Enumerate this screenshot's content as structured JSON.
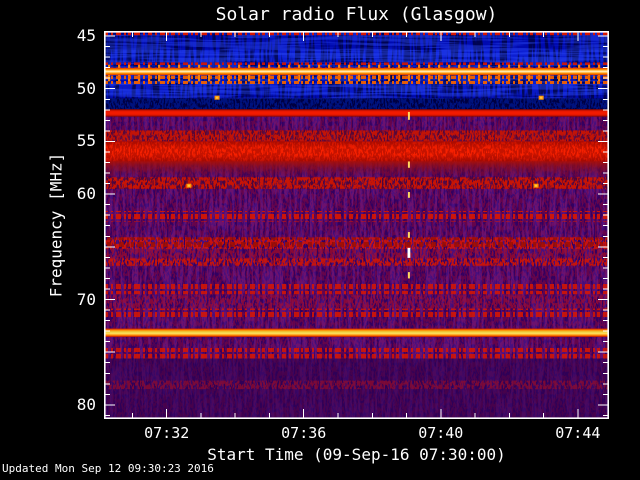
{
  "chart_data": {
    "type": "heatmap",
    "title": "Solar radio Flux (Glasgow)",
    "xlabel": "Start Time (09-Sep-16 07:30:00)",
    "ylabel": "Frequency [MHz]",
    "x_axis": {
      "unit": "minutes after 07:30:00",
      "range_t_min": [
        0.17,
        14.91
      ],
      "major_ticks": [
        {
          "t": 2,
          "label": "07:32"
        },
        {
          "t": 6,
          "label": "07:36"
        },
        {
          "t": 10,
          "label": "07:40"
        },
        {
          "t": 14,
          "label": "07:44"
        }
      ],
      "minor_ticks_t": [
        1,
        2,
        3,
        4,
        5,
        6,
        7,
        8,
        9,
        10,
        11,
        12,
        13,
        14
      ]
    },
    "y_axis": {
      "unit": "MHz",
      "range_mhz": [
        44.52,
        81.34
      ],
      "major_ticks": [
        {
          "f": 45,
          "label": "45"
        },
        {
          "f": 50,
          "label": "50"
        },
        {
          "f": 55,
          "label": "55"
        },
        {
          "f": 60,
          "label": "60"
        },
        {
          "f": 65,
          "label": ""
        },
        {
          "f": 70,
          "label": "70"
        },
        {
          "f": 75,
          "label": ""
        },
        {
          "f": 80,
          "label": "80"
        }
      ],
      "minor_tick_step_mhz": 1
    },
    "bands": [
      {
        "f1": 44.52,
        "f2": 50.92,
        "kind": "solid",
        "color": "#000ab0",
        "op": 1,
        "note": "quiet blue background 45-51 MHz"
      },
      {
        "f1": 46.3,
        "f2": 47.45,
        "kind": "solid",
        "color": "#1026dc",
        "op": 0.75,
        "note": "brighter blue lane"
      },
      {
        "f1": 49.5,
        "f2": 50.55,
        "kind": "solid",
        "color": "#0d1fd2",
        "op": 0.7,
        "note": "brighter blue lane"
      },
      {
        "f1": 44.52,
        "f2": 50.92,
        "kind": "vstreak",
        "color": "#000018",
        "op": 0.6
      },
      {
        "f1": 44.52,
        "f2": 50.92,
        "kind": "streak",
        "color": "#3052ff",
        "op": 0.4
      },
      {
        "f1": 44.52,
        "f2": 44.92,
        "kind": "dashes",
        "pattern": "red",
        "op": 1,
        "note": "speckle line at top edge"
      },
      {
        "f1": 47.5,
        "f2": 48.0,
        "kind": "dashes",
        "pattern": "red",
        "op": 0.9
      },
      {
        "f1": 47.72,
        "f2": 49.3,
        "kind": "amticks",
        "op": 0.95,
        "note": "periodic time ticks on 48.4 MHz carrier"
      },
      {
        "f1": 48.02,
        "f2": 48.7,
        "kind": "vgrad",
        "colors": [
          "#d83000",
          "#ff9400",
          "#fff7c8",
          "#ff9400",
          "#d83000"
        ],
        "op": 1,
        "note": "strong narrowband carrier ~48.4 MHz"
      },
      {
        "f1": 48.75,
        "f2": 49.55,
        "kind": "dashes",
        "pattern": "orange",
        "op": 0.95
      },
      {
        "f1": 50.92,
        "f2": 51.95,
        "kind": "solid",
        "color": "#000042",
        "op": 1,
        "note": "dark lane ~51.5 MHz"
      },
      {
        "f1": 50.92,
        "f2": 51.95,
        "kind": "speckle",
        "color": "#0020b0",
        "op": 0.55
      },
      {
        "f1": 51.95,
        "f2": 52.65,
        "kind": "vgrad",
        "colors": [
          "#a00800",
          "#f21a00",
          "#f21a00",
          "#a00800"
        ],
        "op": 1,
        "note": "carrier 52.3 MHz"
      },
      {
        "f1": 52.65,
        "f2": 81.34,
        "kind": "solid",
        "color": "#340060",
        "op": 1,
        "note": "violet background above 52.6 MHz"
      },
      {
        "f1": 52.65,
        "f2": 81.34,
        "kind": "speckle",
        "color": "#b6102c",
        "op": 0.38
      },
      {
        "f1": 52.65,
        "f2": 81.34,
        "kind": "vstreak",
        "color": "#8038cc",
        "op": 0.28
      },
      {
        "f1": 53.95,
        "f2": 55.0,
        "kind": "solid",
        "color": "#740c14",
        "op": 0.55
      },
      {
        "f1": 53.95,
        "f2": 55.0,
        "kind": "speckle",
        "color": "#d01200",
        "op": 0.85
      },
      {
        "f1": 55.0,
        "f2": 56.9,
        "kind": "vgrad",
        "colors": [
          "#c51200",
          "#f62000",
          "#f62000",
          "#bb1006"
        ],
        "op": 1,
        "note": "broad strong emission band 55-57 MHz"
      },
      {
        "f1": 55.0,
        "f2": 56.9,
        "kind": "speckle",
        "color": "#7e0600",
        "op": 0.4
      },
      {
        "f1": 56.9,
        "f2": 58.5,
        "kind": "vgrad",
        "colors": [
          "#ad1004",
          "rgba(110,10,40,0)"
        ],
        "op": 0.9,
        "note": "fading red"
      },
      {
        "f1": 58.4,
        "f2": 59.5,
        "kind": "solid",
        "color": "#66091a",
        "op": 0.5
      },
      {
        "f1": 58.4,
        "f2": 59.5,
        "kind": "speckle",
        "color": "#d21400",
        "op": 0.9,
        "note": "bursty band ~59 MHz"
      },
      {
        "f1": 61.6,
        "f2": 62.6,
        "kind": "dashes",
        "pattern": "red",
        "op": 0.9
      },
      {
        "f1": 64.1,
        "f2": 65.2,
        "kind": "speckle",
        "color": "#e01800",
        "op": 0.8,
        "note": "dense red band ~64.5 MHz"
      },
      {
        "f1": 64.1,
        "f2": 65.2,
        "kind": "dashes",
        "pattern": "darkred",
        "op": 0.8
      },
      {
        "f1": 65.2,
        "f2": 66.1,
        "kind": "speckle",
        "color": "#a81020",
        "op": 0.55
      },
      {
        "f1": 66.1,
        "f2": 66.8,
        "kind": "speckle",
        "color": "#d41400",
        "op": 0.85
      },
      {
        "f1": 68.5,
        "f2": 69.5,
        "kind": "dashes",
        "pattern": "red",
        "op": 0.85
      },
      {
        "f1": 69.6,
        "f2": 70.8,
        "kind": "speckle",
        "color": "#a8102a",
        "op": 0.5
      },
      {
        "f1": 70.85,
        "f2": 71.8,
        "kind": "dashes",
        "pattern": "red",
        "op": 0.85
      },
      {
        "f1": 72.75,
        "f2": 73.55,
        "kind": "vgrad",
        "colors": [
          "#c00e00",
          "#ff8800",
          "#eccf3e",
          "#ffe060",
          "#ff8800",
          "#c00e00"
        ],
        "op": 1,
        "note": "strong golden carrier ~73 MHz"
      },
      {
        "f1": 74.6,
        "f2": 75.6,
        "kind": "dashes",
        "pattern": "red",
        "op": 0.85
      },
      {
        "f1": 75.6,
        "f2": 81.34,
        "kind": "solid",
        "color": "#2a004e",
        "op": 0.5,
        "note": "darker violet toward 80 MHz"
      },
      {
        "f1": 77.7,
        "f2": 78.5,
        "kind": "speckle",
        "color": "#9c1028",
        "op": 0.6
      }
    ],
    "events": {
      "burst": {
        "t": 9.07,
        "note": "dashed vertical broadband event ~07:39",
        "color": "#ffd75e",
        "bright_color": "#ffffff",
        "segments": [
          {
            "f1": 52.2,
            "f2": 52.95
          },
          {
            "f1": 56.9,
            "f2": 57.5
          },
          {
            "f1": 59.8,
            "f2": 60.35
          },
          {
            "f1": 63.6,
            "f2": 64.15
          },
          {
            "f1": 65.1,
            "f2": 66.05,
            "bright": true
          },
          {
            "f1": 67.4,
            "f2": 68.0
          }
        ]
      },
      "blips": {
        "color": "#ff9400",
        "points": [
          {
            "t": 3.47,
            "f": 50.85
          },
          {
            "t": 12.93,
            "f": 50.85
          },
          {
            "t": 2.65,
            "f": 59.2
          },
          {
            "t": 12.78,
            "f": 59.2
          }
        ]
      }
    }
  },
  "footer": {
    "updated": "Updated Mon Sep 12 09:30:23 2016"
  }
}
